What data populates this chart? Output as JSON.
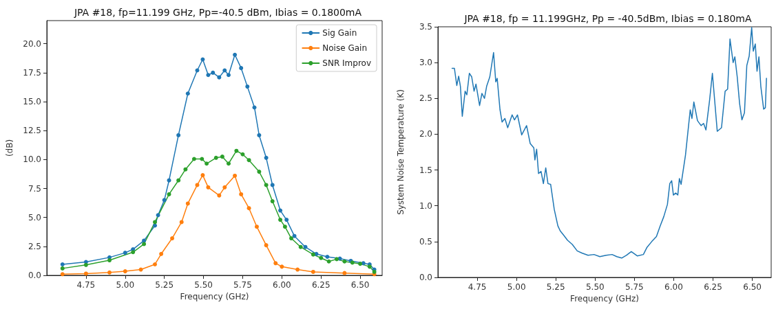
{
  "chart_data": [
    {
      "type": "line",
      "title": "JPA #18, fp=11.199 GHz, Pp=-40.5 dBm, Ibias = 0.1800mA",
      "xlabel": "Frequency (GHz)",
      "ylabel": "(dB)",
      "marker": "circle",
      "legend": "top right",
      "grid": false,
      "xlim": [
        4.5,
        6.64
      ],
      "ylim": [
        0,
        22
      ],
      "xticks": [
        4.75,
        {
          "value": 5,
          "label": "5.00"
        },
        5.25,
        {
          "value": 5.5,
          "label": "5.50"
        },
        5.75,
        {
          "value": 6,
          "label": "6.00"
        },
        6.25,
        {
          "value": 6.5,
          "label": "6.50"
        }
      ],
      "yticks": [
        {
          "value": 0,
          "label": "0.0"
        },
        2.5,
        {
          "value": 5,
          "label": "5.0"
        },
        7.5,
        {
          "value": 10,
          "label": "10.0"
        },
        12.5,
        {
          "value": 15,
          "label": "15.0"
        },
        17.5,
        {
          "value": 20,
          "label": "20.0"
        }
      ],
      "series": [
        {
          "name": "Sig Gain",
          "color": "#1f77b4",
          "x": [
            4.6,
            4.75,
            4.9,
            5.0,
            5.05,
            5.12,
            5.19,
            5.21,
            5.25,
            5.28,
            5.34,
            5.4,
            5.46,
            5.495,
            5.53,
            5.56,
            5.6,
            5.635,
            5.66,
            5.7,
            5.74,
            5.78,
            5.825,
            5.855,
            5.9,
            5.94,
            5.99,
            6.03,
            6.08,
            6.15,
            6.22,
            6.29,
            6.37,
            6.44,
            6.52,
            6.56,
            6.59
          ],
          "values": [
            0.95,
            1.15,
            1.55,
            1.95,
            2.25,
            3.0,
            4.3,
            5.2,
            6.5,
            8.2,
            12.1,
            15.7,
            17.7,
            18.65,
            17.3,
            17.5,
            17.1,
            17.7,
            17.3,
            19.05,
            17.9,
            16.3,
            14.5,
            12.1,
            10.15,
            7.8,
            5.6,
            4.8,
            3.4,
            2.45,
            1.85,
            1.6,
            1.45,
            1.25,
            1.05,
            0.95,
            0.5
          ]
        },
        {
          "name": "Noise Gain",
          "color": "#ff7f0e",
          "x": [
            4.6,
            4.75,
            4.9,
            5.0,
            5.1,
            5.19,
            5.23,
            5.3,
            5.36,
            5.4,
            5.46,
            5.495,
            5.53,
            5.6,
            5.635,
            5.7,
            5.74,
            5.79,
            5.84,
            5.9,
            5.96,
            6.0,
            6.1,
            6.2,
            6.4,
            6.59
          ],
          "values": [
            0.1,
            0.15,
            0.25,
            0.35,
            0.5,
            0.95,
            1.85,
            3.2,
            4.6,
            6.2,
            7.8,
            8.65,
            7.6,
            6.9,
            7.6,
            8.6,
            7.0,
            5.8,
            4.2,
            2.6,
            1.05,
            0.75,
            0.5,
            0.3,
            0.2,
            0.1
          ]
        },
        {
          "name": "SNR Improv",
          "color": "#2ca02c",
          "x": [
            4.6,
            4.75,
            4.9,
            5.05,
            5.12,
            5.19,
            5.28,
            5.34,
            5.385,
            5.44,
            5.49,
            5.52,
            5.58,
            5.62,
            5.66,
            5.71,
            5.75,
            5.79,
            5.855,
            5.9,
            5.94,
            5.99,
            6.02,
            6.06,
            6.12,
            6.2,
            6.25,
            6.3,
            6.35,
            6.4,
            6.45,
            6.5,
            6.56,
            6.59
          ],
          "values": [
            0.6,
            0.9,
            1.3,
            2.0,
            2.7,
            4.6,
            7.0,
            8.2,
            9.15,
            10.05,
            10.05,
            9.65,
            10.15,
            10.25,
            9.65,
            10.75,
            10.45,
            9.95,
            8.95,
            7.8,
            6.4,
            4.8,
            4.2,
            3.2,
            2.45,
            1.8,
            1.5,
            1.2,
            1.4,
            1.2,
            1.1,
            1.0,
            0.75,
            0.3
          ]
        }
      ]
    },
    {
      "type": "line",
      "title": "JPA #18, fp = 11.199GHz, Pp = -40.5dBm, Ibias = 0.180mA",
      "xlabel": "Frequency (GHz)",
      "ylabel": "System Noise Temperature (K)",
      "marker": "none",
      "grid": false,
      "xlim": [
        4.5,
        6.62
      ],
      "ylim": [
        0,
        3.5
      ],
      "xticks": [
        4.75,
        {
          "value": 5,
          "label": "5.00"
        },
        5.25,
        {
          "value": 5.5,
          "label": "5.50"
        },
        5.75,
        {
          "value": 6,
          "label": "6.00"
        },
        6.25,
        {
          "value": 6.5,
          "label": "6.50"
        }
      ],
      "yticks": [
        {
          "value": 0,
          "label": "0.0"
        },
        0.5,
        {
          "value": 1,
          "label": "1.0"
        },
        1.5,
        {
          "value": 2,
          "label": "2.0"
        },
        2.5,
        {
          "value": 3,
          "label": "3.0"
        },
        3.5
      ],
      "series": [
        {
          "color": "#1f77b4",
          "x": [
            4.59,
            4.605,
            4.62,
            4.632,
            4.643,
            4.655,
            4.673,
            4.684,
            4.7,
            4.715,
            4.73,
            4.742,
            4.765,
            4.78,
            4.796,
            4.81,
            4.83,
            4.854,
            4.868,
            4.877,
            4.895,
            4.908,
            4.926,
            4.944,
            4.972,
            4.987,
            5.006,
            5.033,
            5.064,
            5.087,
            5.11,
            5.117,
            5.128,
            5.14,
            5.156,
            5.171,
            5.186,
            5.2,
            5.217,
            5.24,
            5.263,
            5.278,
            5.3,
            5.324,
            5.355,
            5.386,
            5.416,
            5.455,
            5.493,
            5.53,
            5.57,
            5.608,
            5.638,
            5.669,
            5.7,
            5.73,
            5.768,
            5.807,
            5.83,
            5.86,
            5.89,
            5.914,
            5.937,
            5.96,
            5.975,
            5.987,
            5.998,
            6.013,
            6.026,
            6.036,
            6.047,
            6.075,
            6.105,
            6.116,
            6.128,
            6.151,
            6.174,
            6.19,
            6.205,
            6.228,
            6.246,
            6.277,
            6.304,
            6.327,
            6.343,
            6.358,
            6.378,
            6.389,
            6.404,
            6.419,
            6.434,
            6.45,
            6.465,
            6.48,
            6.496,
            6.506,
            6.519,
            6.53,
            6.542,
            6.554,
            6.572,
            6.583,
            6.59
          ],
          "values": [
            2.92,
            2.92,
            2.68,
            2.81,
            2.67,
            2.25,
            2.6,
            2.55,
            2.85,
            2.8,
            2.6,
            2.7,
            2.4,
            2.57,
            2.5,
            2.67,
            2.8,
            3.14,
            2.73,
            2.78,
            2.34,
            2.17,
            2.22,
            2.09,
            2.27,
            2.2,
            2.27,
            1.99,
            2.12,
            1.87,
            1.81,
            1.64,
            1.79,
            1.45,
            1.48,
            1.31,
            1.53,
            1.31,
            1.3,
            0.95,
            0.72,
            0.65,
            0.59,
            0.52,
            0.46,
            0.37,
            0.34,
            0.31,
            0.32,
            0.29,
            0.31,
            0.32,
            0.29,
            0.27,
            0.31,
            0.36,
            0.3,
            0.32,
            0.42,
            0.5,
            0.57,
            0.72,
            0.85,
            1.02,
            1.31,
            1.35,
            1.15,
            1.18,
            1.15,
            1.38,
            1.3,
            1.71,
            2.34,
            2.22,
            2.45,
            2.19,
            2.12,
            2.15,
            2.06,
            2.47,
            2.85,
            2.04,
            2.09,
            2.6,
            2.63,
            3.33,
            3.0,
            3.08,
            2.8,
            2.43,
            2.2,
            2.3,
            2.96,
            3.09,
            3.49,
            3.16,
            3.26,
            2.88,
            3.08,
            2.67,
            2.35,
            2.37,
            2.78
          ]
        }
      ]
    }
  ]
}
